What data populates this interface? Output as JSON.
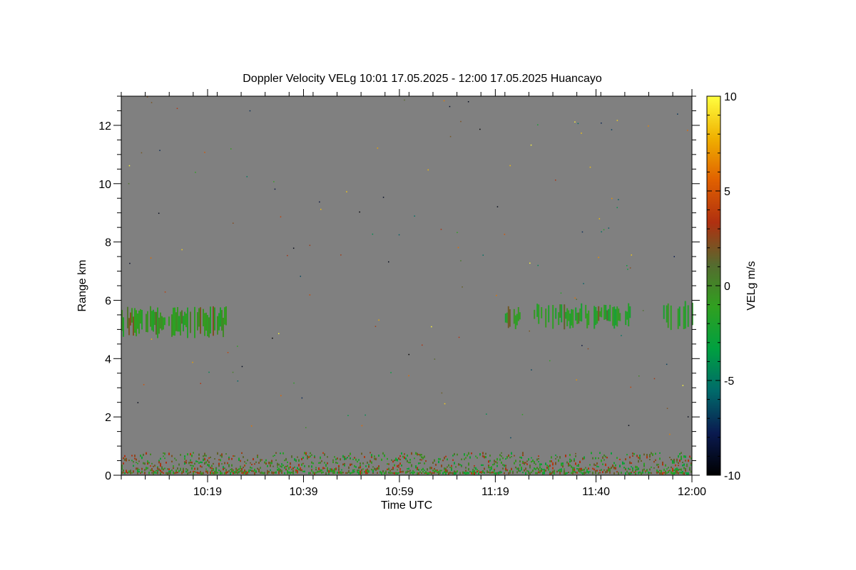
{
  "chart_data": {
    "type": "heatmap",
    "title": "Doppler Velocity VELg   10:01 17.05.2025 - 12:00 17.05.2025 Huancayo",
    "xlabel": "Time UTC",
    "ylabel": "Range km",
    "x_range": [
      "10:01",
      "12:00"
    ],
    "x_ticks": [
      {
        "label": "10:19",
        "value": "10:19"
      },
      {
        "label": "10:39",
        "value": "10:39"
      },
      {
        "label": "10:59",
        "value": "10:59"
      },
      {
        "label": "11:19",
        "value": "11:19"
      },
      {
        "label": "11:40",
        "value": "11:40"
      },
      {
        "label": "12:00",
        "value": "12:00"
      }
    ],
    "ylim": [
      0,
      13
    ],
    "y_ticks": [
      0,
      2,
      4,
      6,
      8,
      10,
      12
    ],
    "background_color": "#808080",
    "colorbar": {
      "label": "VELg m/s",
      "range": [
        -10,
        10
      ],
      "ticks": [
        10,
        5,
        0,
        -5,
        -10
      ],
      "colors": [
        "#000000",
        "#0a1a50",
        "#006a6a",
        "#00a040",
        "#30a020",
        "#556b2f",
        "#b03010",
        "#e06000",
        "#f0b000",
        "#ffff40"
      ]
    },
    "features": [
      {
        "name": "cloud-layer-1",
        "time_start": "10:01",
        "time_end": "10:23",
        "range_km": [
          4.7,
          5.8
        ],
        "velocity_ms": -1
      },
      {
        "name": "cloud-layer-2",
        "time_start": "11:21",
        "time_end": "11:24",
        "range_km": [
          5.0,
          5.8
        ],
        "velocity_ms": -1.5
      },
      {
        "name": "cloud-layer-3",
        "time_start": "11:27",
        "time_end": "11:47",
        "range_km": [
          5.0,
          5.9
        ],
        "velocity_ms": -1.5
      },
      {
        "name": "cloud-layer-4",
        "time_start": "11:54",
        "time_end": "12:00",
        "range_km": [
          4.9,
          6.0
        ],
        "velocity_ms": -1.5
      },
      {
        "name": "surface-clutter",
        "time_start": "10:01",
        "time_end": "12:00",
        "range_km": [
          0.1,
          0.8
        ],
        "velocity_ms": 0
      }
    ]
  }
}
